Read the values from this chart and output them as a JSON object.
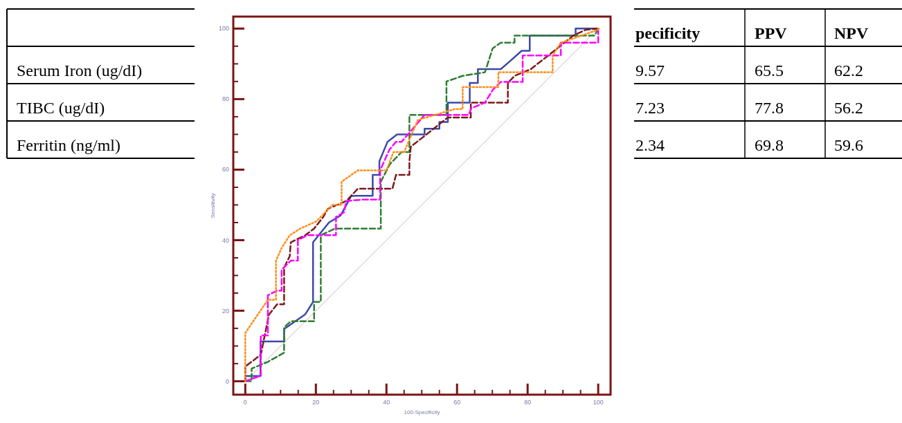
{
  "chart_data": [
    {
      "type": "other",
      "annotations": [
        "pecificity",
        "PPV",
        "NPV",
        "Serum Iron (ug/dI)",
        "9.57",
        "65.5",
        "62.2",
        "TIBC (ug/dI)",
        "7.23",
        "77.8",
        "56.2",
        "Ferritin (ng/ml)",
        "2.34",
        "69.8",
        "59.6"
      ]
    },
    {
      "type": "line",
      "xlabel": "100-Specificity",
      "ylabel": "Sensitivity",
      "xlim": [
        -3.4,
        103.5
      ],
      "ylim": [
        -3.8,
        103.4
      ],
      "xticks": [
        0,
        {
          "value": 5,
          "label": null
        },
        {
          "value": 10,
          "label": null
        },
        {
          "value": 15,
          "label": null
        },
        20,
        {
          "value": 25,
          "label": null
        },
        {
          "value": 30,
          "label": null
        },
        {
          "value": 35,
          "label": null
        },
        40,
        {
          "value": 45,
          "label": null
        },
        {
          "value": 50,
          "label": null
        },
        {
          "value": 55,
          "label": null
        },
        60,
        {
          "value": 65,
          "label": null
        },
        {
          "value": 70,
          "label": null
        },
        {
          "value": 75,
          "label": null
        },
        80,
        {
          "value": 85,
          "label": null
        },
        {
          "value": 90,
          "label": null
        },
        {
          "value": 95,
          "label": null
        },
        100
      ],
      "yticks": [
        0,
        {
          "value": 5,
          "label": null
        },
        {
          "value": 10,
          "label": null
        },
        {
          "value": 15,
          "label": null
        },
        20,
        {
          "value": 25,
          "label": null
        },
        {
          "value": 30,
          "label": null
        },
        {
          "value": 35,
          "label": null
        },
        40,
        {
          "value": 45,
          "label": null
        },
        {
          "value": 50,
          "label": null
        },
        {
          "value": 55,
          "label": null
        },
        60,
        {
          "value": 65,
          "label": null
        },
        {
          "value": 70,
          "label": null
        },
        {
          "value": 75,
          "label": null
        },
        80,
        {
          "value": 85,
          "label": null
        },
        {
          "value": 90,
          "label": null
        },
        {
          "value": 95,
          "label": null
        },
        100
      ],
      "grid": false,
      "marker": "none",
      "series": [
        {
          "color": "#c8b8b8",
          "line_style": "solid",
          "x": [
            0,
            100
          ],
          "values": [
            0,
            100
          ]
        },
        {
          "color": "#ff8c1a",
          "line_style": "dotted",
          "x": [
            0,
            0,
            6.4,
            8.7,
            8.7,
            10.3,
            12.6,
            15.6,
            20.1,
            24.7,
            27.3,
            27.3,
            31.9,
            40,
            42,
            45,
            48.9,
            59.4,
            61.6,
            61.6,
            71.7,
            71.7,
            87.1,
            87.1,
            89.4,
            95.3,
            99.9,
            100
          ],
          "values": [
            0,
            13.7,
            23.1,
            23.1,
            34.2,
            37.8,
            41.4,
            43.3,
            45.3,
            50,
            50,
            56.6,
            59.8,
            59.8,
            65,
            65,
            74.1,
            77.2,
            77.2,
            83.4,
            83.4,
            87.6,
            87.6,
            92.4,
            96,
            98,
            99.7,
            100
          ]
        },
        {
          "color": "#ff00ff",
          "line_style": "dashed",
          "x": [
            0,
            4.4,
            4.4,
            6.4,
            6.4,
            9,
            10.3,
            10.3,
            12.9,
            14.9,
            14.9,
            17.5,
            25.7,
            25.7,
            28,
            28.6,
            33.2,
            38.2,
            38.2,
            40.8,
            42.7,
            44.3,
            50.8,
            63.3,
            64,
            67.9,
            70.1,
            72.4,
            78.6,
            78.6,
            89.4,
            89.4,
            100,
            100
          ],
          "values": [
            0,
            1.6,
            13,
            13,
            24.4,
            25.7,
            25.7,
            31.6,
            34.2,
            34.2,
            40,
            41.4,
            41.4,
            46.6,
            47.9,
            51.1,
            51.5,
            51.5,
            59.8,
            65.6,
            67.9,
            67.9,
            75.5,
            75.5,
            77.4,
            79,
            82.6,
            84.9,
            84.9,
            92.4,
            92.4,
            96,
            96,
            100
          ]
        },
        {
          "color": "#7b1a1a",
          "line_style": "dashed",
          "x": [
            0,
            0,
            4.4,
            6.7,
            9,
            11,
            11,
            12.6,
            12.9,
            17,
            19.5,
            22.1,
            23.4,
            28.6,
            31.9,
            41.7,
            42.7,
            46.5,
            46.5,
            46.9,
            57.4,
            63.9,
            63.9,
            67.9,
            74.4,
            74.4,
            76.3,
            80.9,
            85.5,
            92.9,
            96.6,
            100
          ],
          "values": [
            0,
            4.2,
            7.5,
            18.9,
            21.8,
            21.8,
            32.2,
            35.5,
            39.4,
            41.4,
            43.3,
            46.6,
            48.9,
            51.1,
            54.6,
            54.6,
            58.5,
            58.5,
            62.4,
            66.5,
            74.8,
            74.8,
            79,
            79,
            79,
            84.6,
            86.6,
            88.5,
            92.1,
            98,
            99.7,
            100
          ]
        },
        {
          "color": "#2e7d32",
          "line_style": "dashed",
          "x": [
            0,
            1.8,
            1.8,
            6.4,
            11,
            11,
            12.9,
            19.5,
            19.5,
            21.4,
            21.4,
            25.4,
            38.4,
            38.4,
            41,
            44.3,
            46.5,
            46.5,
            57,
            57,
            61.6,
            67.9,
            70.1,
            72.4,
            76.3,
            76.3,
            99,
            100
          ],
          "values": [
            0,
            0,
            3.6,
            5.5,
            8.1,
            15.3,
            17,
            17,
            22.5,
            22.5,
            41.4,
            43.3,
            43.3,
            56.6,
            61.6,
            65,
            65,
            75.5,
            75.5,
            85,
            86.6,
            87.6,
            94.4,
            96,
            96,
            98,
            98,
            100
          ]
        },
        {
          "color": "#3a4aa8",
          "line_style": "solid",
          "x": [
            0,
            0,
            4.3,
            4.3,
            11,
            11,
            17,
            19.2,
            19.2,
            23.7,
            27,
            30,
            31.2,
            36.1,
            36.1,
            38,
            38,
            40.3,
            43,
            50.8,
            50.8,
            55,
            55,
            57.4,
            57.4,
            63.6,
            63.6,
            65.9,
            65.9,
            72.4,
            74.7,
            78.3,
            80.6,
            80.6,
            93.6,
            93.6,
            100
          ],
          "values": [
            0,
            1.5,
            1.5,
            11.3,
            11.3,
            14.8,
            19,
            22.5,
            39.4,
            45,
            47,
            52.5,
            52.6,
            52.6,
            58.5,
            58.5,
            62.4,
            67.9,
            70,
            70,
            71.6,
            71.6,
            73.5,
            73.5,
            79,
            79,
            84.6,
            84.6,
            88.5,
            88.5,
            90.5,
            93.7,
            93.7,
            98,
            98,
            100,
            100
          ]
        }
      ]
    }
  ]
}
